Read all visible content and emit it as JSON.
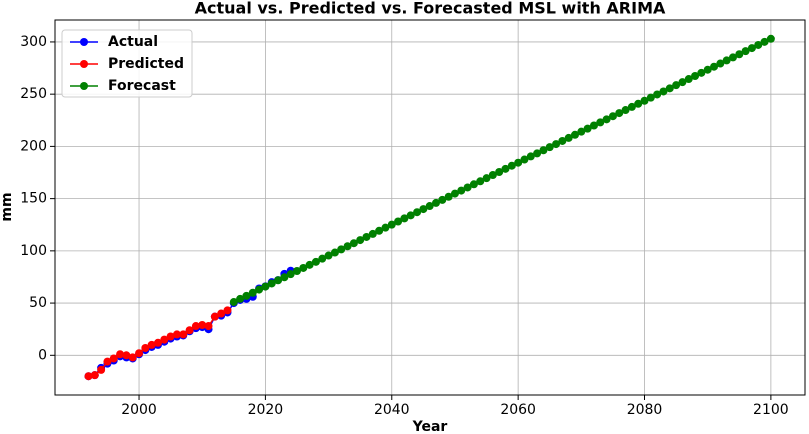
{
  "chart_data": {
    "type": "line",
    "title": "Actual vs. Predicted vs. Forecasted MSL with ARIMA",
    "xlabel": "Year",
    "ylabel": "mm",
    "xlim": [
      1986.7,
      2105.4
    ],
    "ylim": [
      -38,
      321
    ],
    "xticks": [
      2000,
      2020,
      2040,
      2060,
      2080,
      2100
    ],
    "yticks": [
      0,
      50,
      100,
      150,
      200,
      250,
      300
    ],
    "grid": true,
    "legend": "upper left",
    "series": [
      {
        "name": "Actual",
        "color": "#0000ff",
        "x": [
          1992,
          1993,
          1994,
          1995,
          1996,
          1997,
          1998,
          1999,
          2000,
          2001,
          2002,
          2003,
          2004,
          2005,
          2006,
          2007,
          2008,
          2009,
          2010,
          2011,
          2012,
          2013,
          2014,
          2015,
          2016,
          2017,
          2018,
          2019,
          2020,
          2021,
          2022,
          2023,
          2024
        ],
        "values": [
          -20,
          -19,
          -12,
          -8,
          -5,
          -1,
          -2,
          -3,
          1,
          5,
          8,
          10,
          13,
          16,
          18,
          19,
          23,
          26,
          27,
          25,
          37,
          38,
          41,
          50,
          53,
          54,
          56,
          64,
          66,
          70,
          72,
          78,
          81
        ]
      },
      {
        "name": "Predicted",
        "color": "#ff0000",
        "x": [
          1992,
          1993,
          1994,
          1995,
          1996,
          1997,
          1998,
          1999,
          2000,
          2001,
          2002,
          2003,
          2004,
          2005,
          2006,
          2007,
          2008,
          2009,
          2010,
          2011,
          2012,
          2013,
          2014
        ],
        "values": [
          -20,
          -19,
          -14,
          -6,
          -3,
          1,
          0,
          -2,
          2,
          7,
          10,
          12,
          15,
          18,
          20,
          20,
          24,
          28,
          29,
          28,
          37,
          40,
          43
        ]
      },
      {
        "name": "Forecast",
        "color": "#008000",
        "x": [
          2015,
          2016,
          2017,
          2018,
          2019,
          2020,
          2021,
          2022,
          2023,
          2024,
          2025,
          2026,
          2027,
          2028,
          2029,
          2030,
          2031,
          2032,
          2033,
          2034,
          2035,
          2036,
          2037,
          2038,
          2039,
          2040,
          2041,
          2042,
          2043,
          2044,
          2045,
          2046,
          2047,
          2048,
          2049,
          2050,
          2051,
          2052,
          2053,
          2054,
          2055,
          2056,
          2057,
          2058,
          2059,
          2060,
          2061,
          2062,
          2063,
          2064,
          2065,
          2066,
          2067,
          2068,
          2069,
          2070,
          2071,
          2072,
          2073,
          2074,
          2075,
          2076,
          2077,
          2078,
          2079,
          2080,
          2081,
          2082,
          2083,
          2084,
          2085,
          2086,
          2087,
          2088,
          2089,
          2090,
          2091,
          2092,
          2093,
          2094,
          2095,
          2096,
          2097,
          2098,
          2099,
          2100
        ],
        "values": [
          51.0,
          54.0,
          56.9,
          59.9,
          62.9,
          65.8,
          68.8,
          71.8,
          74.7,
          77.7,
          80.7,
          83.6,
          86.6,
          89.5,
          92.5,
          95.5,
          98.4,
          101.4,
          104.4,
          107.3,
          110.3,
          113.3,
          116.2,
          119.2,
          122.2,
          125.1,
          128.1,
          131.1,
          134.0,
          137.0,
          140.0,
          142.9,
          145.9,
          148.8,
          151.8,
          154.8,
          157.7,
          160.7,
          163.7,
          166.6,
          169.6,
          172.6,
          175.5,
          178.5,
          181.5,
          184.4,
          187.4,
          190.4,
          193.3,
          196.3,
          199.3,
          202.2,
          205.2,
          208.1,
          211.1,
          214.1,
          217.0,
          220.0,
          223.0,
          225.9,
          228.9,
          231.9,
          234.8,
          237.8,
          240.8,
          243.7,
          246.7,
          249.7,
          252.6,
          255.6,
          258.6,
          261.5,
          264.5,
          267.4,
          270.4,
          273.4,
          276.3,
          279.3,
          282.3,
          285.2,
          288.2,
          291.2,
          294.1,
          297.1,
          300.1,
          303.0
        ]
      }
    ]
  }
}
